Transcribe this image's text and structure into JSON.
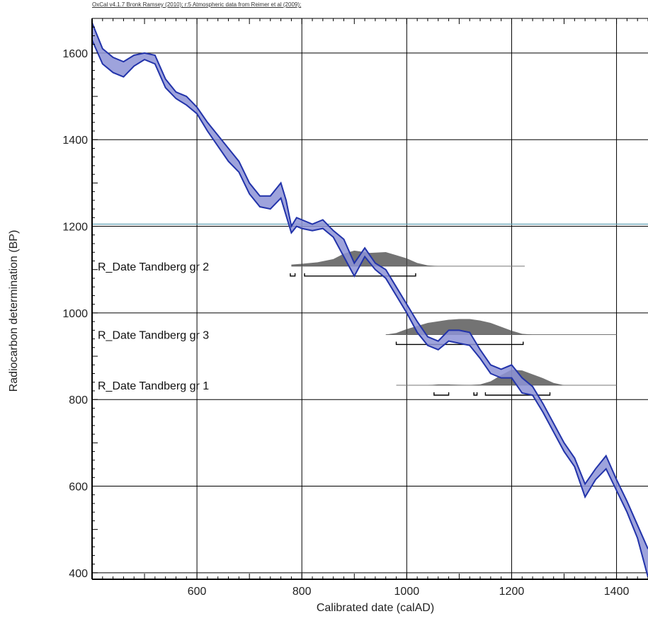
{
  "header": "OxCal v4.1.7 Bronk Ramsey (2010); r:5 Atmospheric data from Reimer et al (2009);",
  "chart_data": {
    "type": "line",
    "xlabel": "Calibrated date (calAD)",
    "ylabel": "Radiocarbon determination (BP)",
    "xlim": [
      400,
      1460
    ],
    "ylim": [
      385,
      1680
    ],
    "x_ticks": [
      600,
      800,
      1000,
      1200,
      1400
    ],
    "y_ticks": [
      400,
      600,
      800,
      1000,
      1200,
      1400,
      1600
    ],
    "grid": true,
    "colors": {
      "curve_fill": "#8d93d6",
      "curve_edge": "#2233aa",
      "distribution": "#444444",
      "reference_line": "#5e9db0"
    },
    "series": [
      {
        "x": [
          400,
          420,
          440,
          460,
          480,
          500,
          520,
          540,
          560,
          580,
          600,
          620,
          640,
          660,
          680,
          700,
          720,
          740,
          760,
          770,
          780,
          790,
          800,
          820,
          840,
          860,
          880,
          900,
          920,
          940,
          960,
          980,
          1000,
          1020,
          1040,
          1060,
          1080,
          1100,
          1120,
          1140,
          1160,
          1180,
          1200,
          1220,
          1240,
          1260,
          1280,
          1300,
          1320,
          1340,
          1360,
          1380,
          1400,
          1420,
          1440,
          1460
        ],
        "upper": [
          1670,
          1610,
          1590,
          1580,
          1595,
          1600,
          1595,
          1540,
          1510,
          1500,
          1475,
          1440,
          1410,
          1380,
          1350,
          1300,
          1270,
          1270,
          1300,
          1260,
          1200,
          1220,
          1215,
          1205,
          1215,
          1190,
          1170,
          1115,
          1150,
          1115,
          1100,
          1060,
          1020,
          980,
          945,
          935,
          960,
          960,
          955,
          915,
          880,
          870,
          880,
          850,
          830,
          790,
          745,
          700,
          665,
          605,
          640,
          670,
          615,
          565,
          510,
          455
        ],
        "lower": [
          1630,
          1575,
          1555,
          1545,
          1570,
          1585,
          1575,
          1520,
          1495,
          1480,
          1460,
          1420,
          1385,
          1350,
          1325,
          1275,
          1245,
          1240,
          1265,
          1225,
          1185,
          1200,
          1195,
          1190,
          1195,
          1175,
          1130,
          1085,
          1130,
          1100,
          1080,
          1040,
          1000,
          955,
          925,
          915,
          935,
          930,
          925,
          895,
          860,
          850,
          850,
          815,
          810,
          770,
          725,
          680,
          645,
          575,
          615,
          640,
          590,
          540,
          480,
          390
        ]
      }
    ],
    "reference_line": {
      "y": 1205
    },
    "samples": [
      {
        "label": "R_Date Tandberg gr 2",
        "radiocarbon_bp": 1108,
        "range_calad": [
          780,
          1225
        ],
        "dist": [
          [
            780,
            0.1
          ],
          [
            800,
            0.15
          ],
          [
            830,
            0.25
          ],
          [
            860,
            0.45
          ],
          [
            880,
            0.8
          ],
          [
            900,
            1.0
          ],
          [
            930,
            0.85
          ],
          [
            960,
            0.9
          ],
          [
            980,
            0.7
          ],
          [
            1000,
            0.5
          ],
          [
            1020,
            0.2
          ],
          [
            1040,
            0.05
          ],
          [
            1060,
            0
          ]
        ],
        "hpd_ranges": [
          [
            778,
            787
          ],
          [
            805,
            1017
          ]
        ]
      },
      {
        "label": "R_Date Tandberg gr 3",
        "radiocarbon_bp": 950,
        "range_calad": [
          960,
          1400
        ],
        "dist": [
          [
            960,
            0
          ],
          [
            980,
            0.1
          ],
          [
            1000,
            0.35
          ],
          [
            1020,
            0.55
          ],
          [
            1040,
            0.75
          ],
          [
            1060,
            0.85
          ],
          [
            1080,
            0.95
          ],
          [
            1100,
            1.0
          ],
          [
            1120,
            1.0
          ],
          [
            1140,
            0.9
          ],
          [
            1160,
            0.75
          ],
          [
            1180,
            0.5
          ],
          [
            1200,
            0.25
          ],
          [
            1220,
            0.05
          ],
          [
            1240,
            0
          ]
        ],
        "hpd_ranges": [
          [
            980,
            1222
          ]
        ]
      },
      {
        "label": "R_Date Tandberg gr 1",
        "radiocarbon_bp": 833,
        "range_calad": [
          980,
          1400
        ],
        "dist": [
          [
            1040,
            0
          ],
          [
            1060,
            0.05
          ],
          [
            1080,
            0.05
          ],
          [
            1100,
            0.03
          ],
          [
            1120,
            0.02
          ],
          [
            1140,
            0.05
          ],
          [
            1160,
            0.25
          ],
          [
            1180,
            0.65
          ],
          [
            1200,
            1.0
          ],
          [
            1220,
            0.95
          ],
          [
            1240,
            0.7
          ],
          [
            1260,
            0.45
          ],
          [
            1280,
            0.15
          ],
          [
            1300,
            0
          ]
        ],
        "hpd_ranges": [
          [
            1052,
            1080
          ],
          [
            1128,
            1134
          ],
          [
            1150,
            1273
          ]
        ]
      }
    ]
  }
}
